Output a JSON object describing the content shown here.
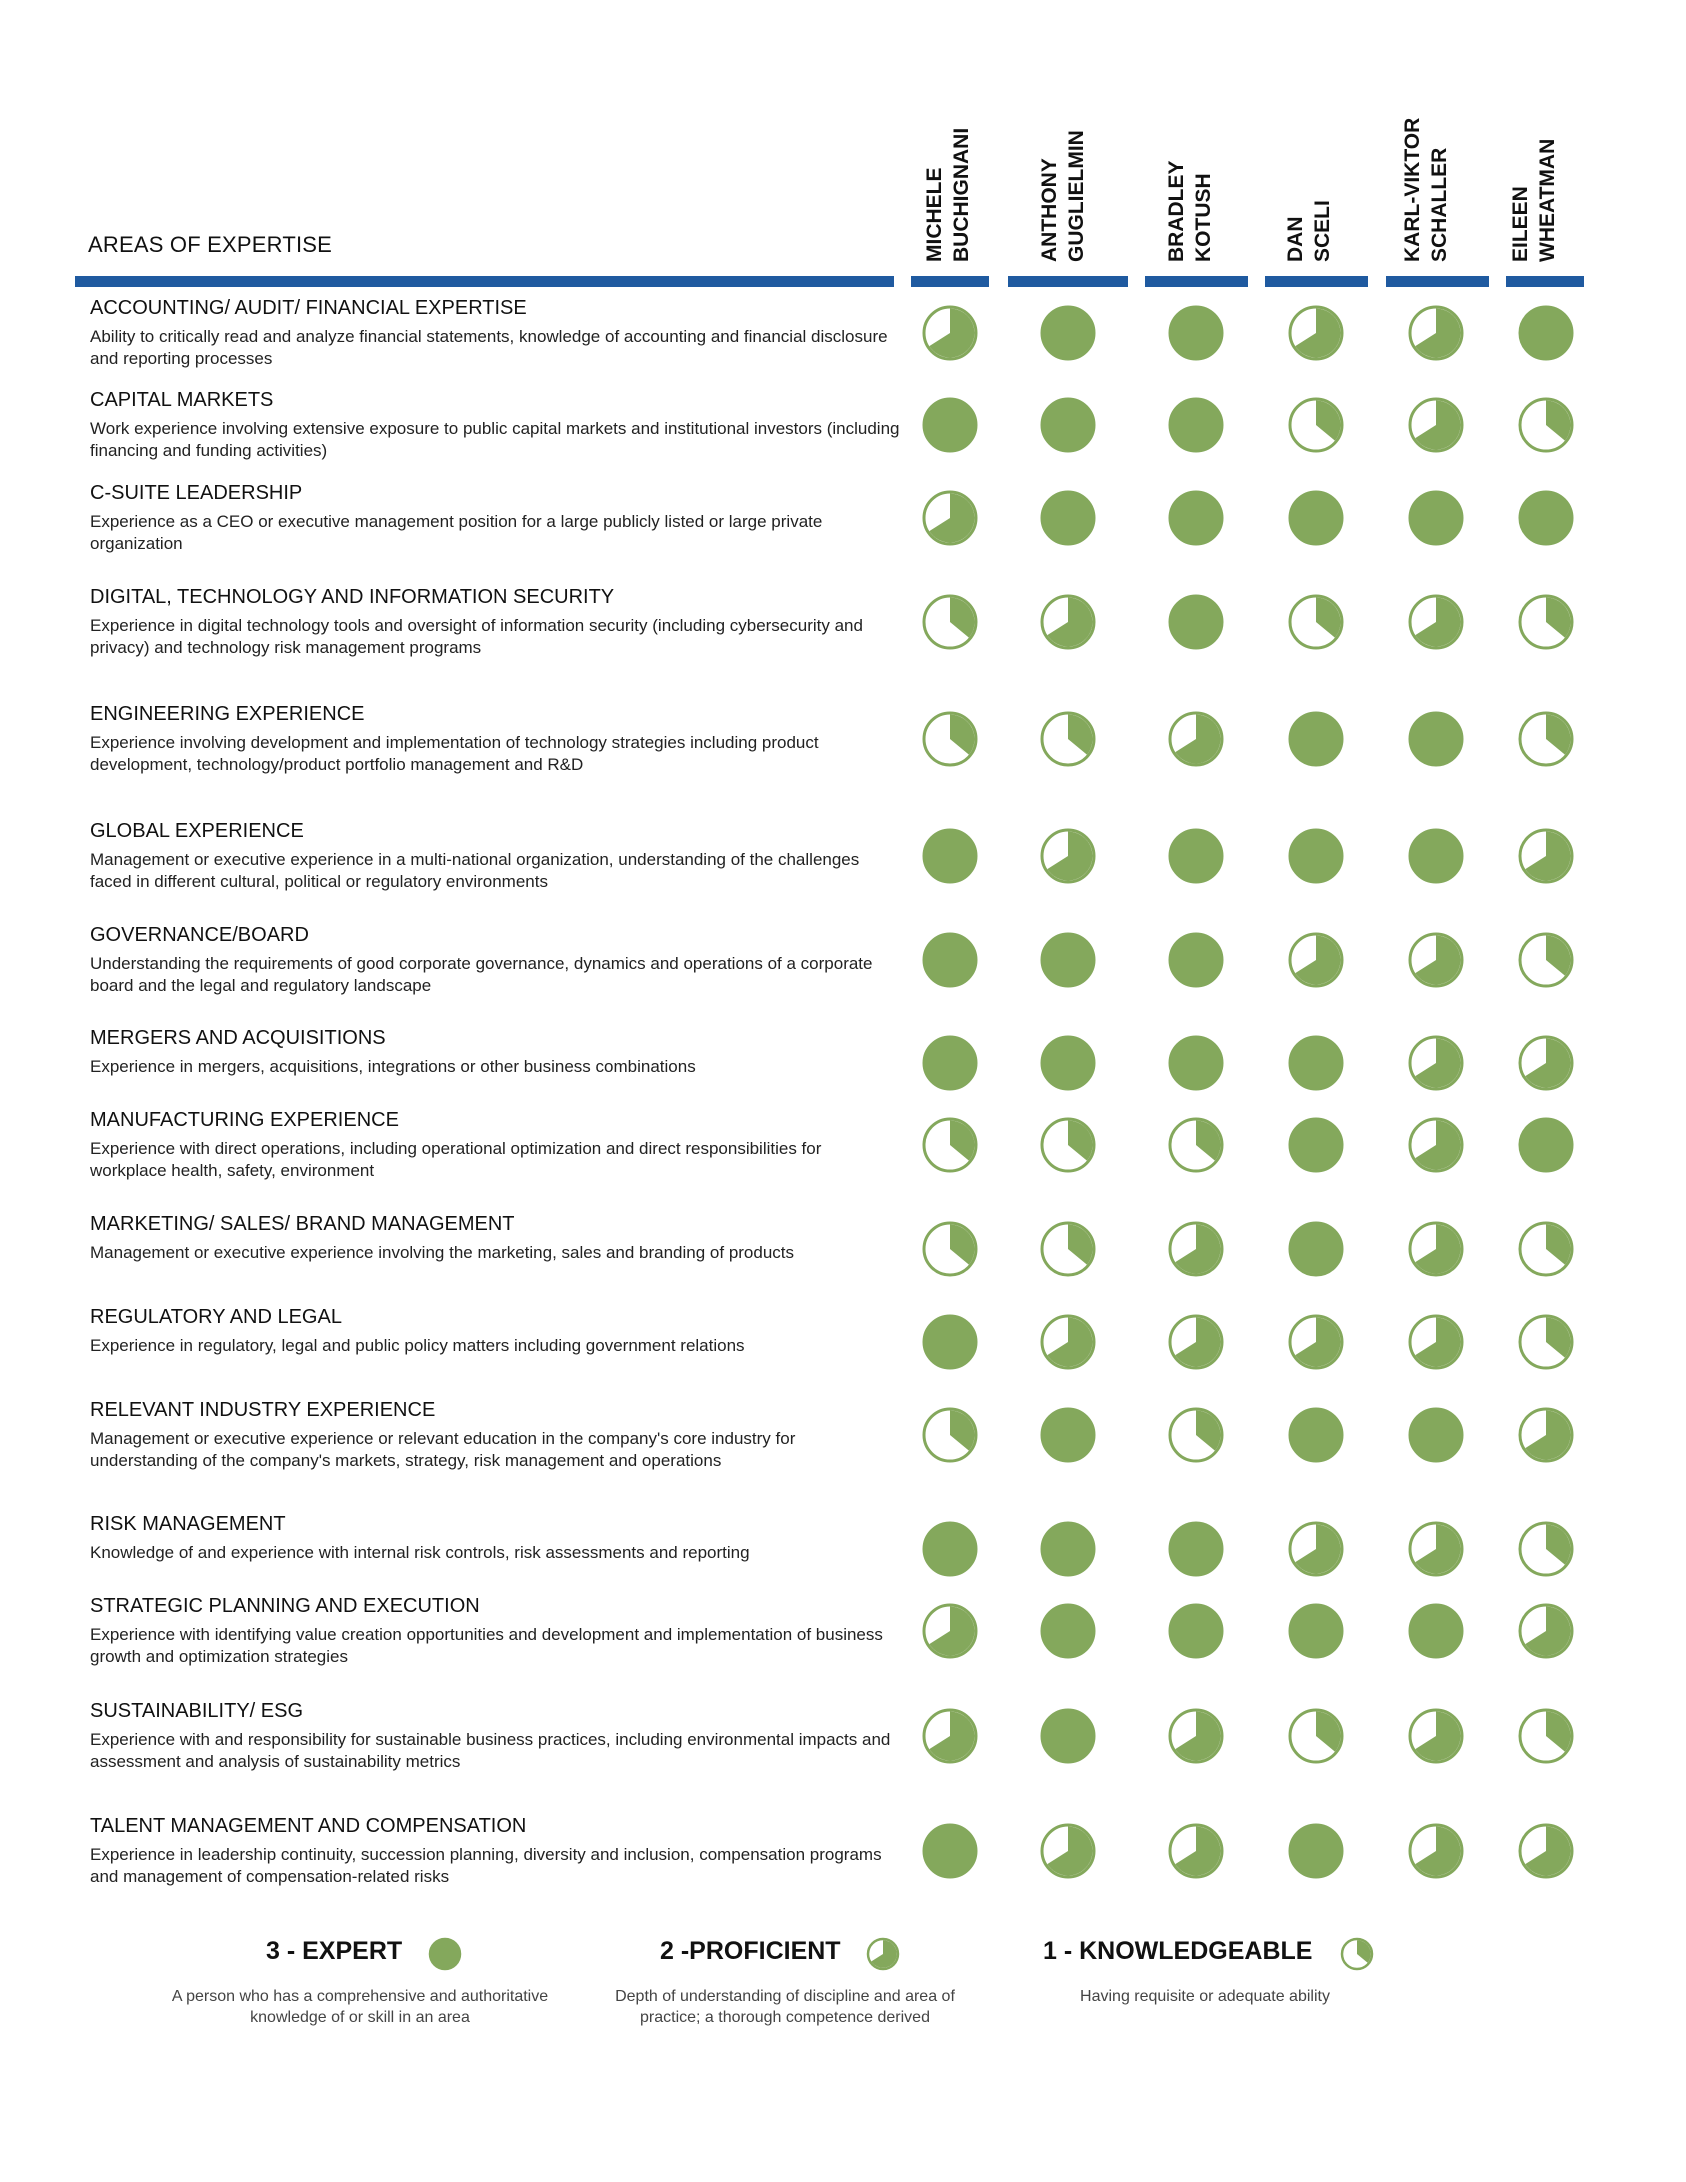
{
  "header": {
    "areas_label": "AREAS OF EXPERTISE",
    "directors": [
      {
        "line1": "MICHELE",
        "line2": "BUCHIGNANI"
      },
      {
        "line1": "ANTHONY",
        "line2": "GUGLIELMIN"
      },
      {
        "line1": "BRADLEY",
        "line2": "KOTUSH"
      },
      {
        "line1": "DAN",
        "line2": "SCELI"
      },
      {
        "line1": "KARL-VIKTOR",
        "line2": "SCHALLER"
      },
      {
        "line1": "EILEEN",
        "line2": "WHEATMAN"
      }
    ]
  },
  "colors": {
    "accent": "#1f5aa0",
    "dot": "#84a85c"
  },
  "rows": [
    {
      "title": "ACCOUNTING/ AUDIT/ FINANCIAL EXPERTISE",
      "desc": "Ability to critically read and analyze financial statements, knowledge of accounting and financial disclosure and reporting processes",
      "ratings": [
        2,
        3,
        3,
        2,
        2,
        3
      ]
    },
    {
      "title": "CAPITAL MARKETS",
      "desc": "Work experience involving extensive exposure to public capital markets and institutional investors (including financing and funding activities)",
      "ratings": [
        3,
        3,
        3,
        1,
        2,
        1
      ]
    },
    {
      "title": "C-SUITE LEADERSHIP",
      "desc": "Experience as a CEO or executive management position for a large publicly listed or large private organization",
      "ratings": [
        2,
        3,
        3,
        3,
        3,
        3
      ]
    },
    {
      "title": "DIGITAL, TECHNOLOGY AND INFORMATION SECURITY",
      "desc": "Experience in digital technology tools and oversight of information security (including cybersecurity and privacy) and technology risk management programs",
      "ratings": [
        1,
        2,
        3,
        1,
        2,
        1
      ]
    },
    {
      "title": "ENGINEERING EXPERIENCE",
      "desc": "Experience involving development and implementation of technology strategies including product development, technology/product portfolio management and R&D",
      "ratings": [
        1,
        1,
        2,
        3,
        3,
        1
      ]
    },
    {
      "title": "GLOBAL EXPERIENCE",
      "desc": "Management or executive experience in a multi-national organization, understanding of the challenges faced in different cultural, political or regulatory environments",
      "ratings": [
        3,
        2,
        3,
        3,
        3,
        2
      ]
    },
    {
      "title": "GOVERNANCE/BOARD",
      "desc": "Understanding the requirements of good corporate governance, dynamics and operations of a corporate board and the legal and regulatory landscape",
      "ratings": [
        3,
        3,
        3,
        2,
        2,
        1
      ]
    },
    {
      "title": "MERGERS AND ACQUISITIONS",
      "desc": "Experience in mergers, acquisitions, integrations or other business combinations",
      "ratings": [
        3,
        3,
        3,
        3,
        2,
        2
      ]
    },
    {
      "title": "MANUFACTURING EXPERIENCE",
      "desc": "Experience with direct operations, including operational optimization and direct responsibilities for workplace health, safety, environment",
      "ratings": [
        1,
        1,
        1,
        3,
        2,
        3
      ]
    },
    {
      "title": "MARKETING/ SALES/ BRAND MANAGEMENT",
      "desc": "Management or executive experience involving the marketing, sales and branding of products",
      "ratings": [
        1,
        1,
        2,
        3,
        2,
        1
      ]
    },
    {
      "title": "REGULATORY AND LEGAL",
      "desc": "Experience in regulatory, legal and public policy matters including government relations",
      "ratings": [
        3,
        2,
        2,
        2,
        2,
        1
      ]
    },
    {
      "title": "RELEVANT INDUSTRY EXPERIENCE",
      "desc": "Management or executive experience or relevant education in the company's core industry for understanding of the company's markets, strategy, risk management and operations",
      "ratings": [
        1,
        3,
        1,
        3,
        3,
        2
      ]
    },
    {
      "title": "RISK MANAGEMENT",
      "desc": "Knowledge of and experience with internal risk controls, risk assessments and reporting",
      "ratings": [
        3,
        3,
        3,
        2,
        2,
        1
      ]
    },
    {
      "title": "STRATEGIC PLANNING AND EXECUTION",
      "desc": "Experience with identifying value creation opportunities and development and implementation of business growth and optimization strategies",
      "ratings": [
        2,
        3,
        3,
        3,
        3,
        2
      ]
    },
    {
      "title": "SUSTAINABILITY/ ESG",
      "desc": "Experience with and responsibility for sustainable business practices, including environmental impacts and assessment and analysis of sustainability metrics",
      "ratings": [
        2,
        3,
        2,
        1,
        2,
        1
      ]
    },
    {
      "title": "TALENT MANAGEMENT AND COMPENSATION",
      "desc": "Experience in leadership continuity, succession planning, diversity and inclusion, compensation programs and management of compensation-related risks",
      "ratings": [
        3,
        2,
        2,
        3,
        2,
        2
      ]
    }
  ],
  "legend": [
    {
      "level": 3,
      "label": "3 - EXPERT",
      "desc": "A person who has a comprehensive and authoritative knowledge of or skill in an area"
    },
    {
      "level": 2,
      "label": "2 -PROFICIENT",
      "desc": "Depth of understanding of discipline and area of practice; a thorough competence derived"
    },
    {
      "level": 1,
      "label": "1 - KNOWLEDGEABLE",
      "desc": "Having requisite or adequate ability"
    }
  ]
}
